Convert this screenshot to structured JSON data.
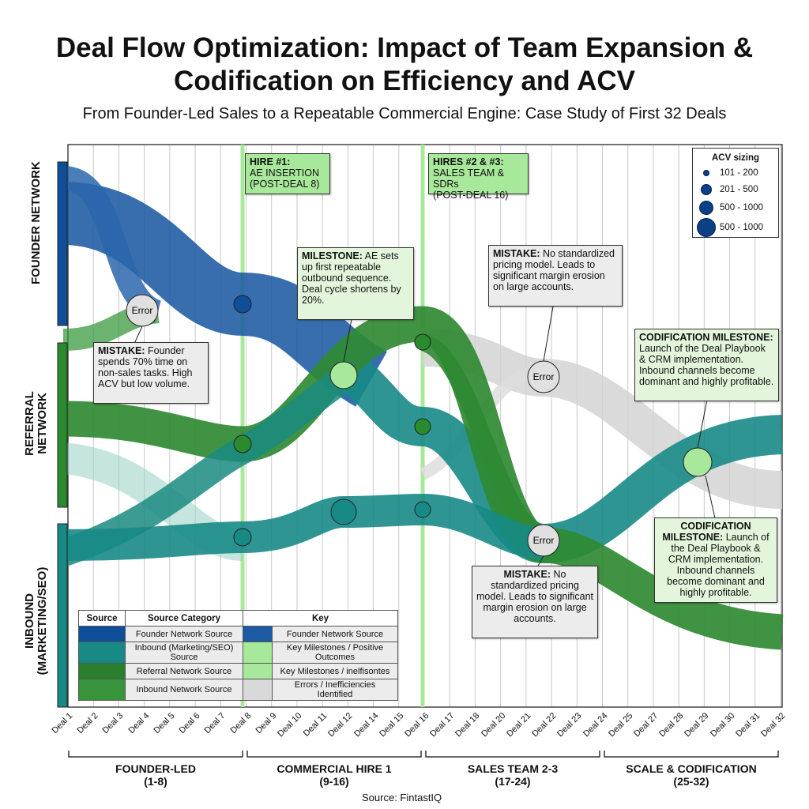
{
  "title": "Deal Flow Optimization: Impact of Team Expansion & Codification on Efficiency and ACV",
  "subtitle": "From Founder-Led Sales to a Repeatable Commercial Engine: Case Study of First 32 Deals",
  "colors": {
    "founder": "#1c5aa3",
    "inbound": "#178a86",
    "referral": "#2f8a33",
    "milestone": "#a8e89a",
    "error": "#d6d6d6"
  },
  "side_labels": {
    "founder": "FOUNDER NETWORK",
    "referral": "REFERRAL NETWORK",
    "inbound": "INBOUND (MARKETING/SEO)"
  },
  "hires": [
    {
      "title": "HIRE #1:",
      "line1": "AE INSERTION",
      "line2": "(POST-DEAL 8)"
    },
    {
      "title": "HIRES #2 & #3:",
      "line1": "SALES TEAM & SDRs",
      "line2": "(POST-DEAL 16)"
    }
  ],
  "annotations": {
    "mistake1": {
      "title": "MISTAKE:",
      "text": "Founder spends 70% time on non-sales tasks. High ACV but low volume."
    },
    "milestone1": {
      "title": "MILESTONE:",
      "text": "AE sets up first repeatable outbound sequence. Deal cycle shortens by 20%."
    },
    "mistake2": {
      "title": "MISTAKE:",
      "text": "No standardized pricing model. Leads to significant margin erosion on large accounts."
    },
    "mistake3": {
      "title": "MISTAKE:",
      "text": "No standardized pricing model. Leads to significant margin erosion on large accounts."
    },
    "codification1": {
      "title": "CODIFICATION MILESTONE:",
      "text": "Launch of the Deal Playbook & CRM implementation. Inbound channels become dominant and highly profitable."
    },
    "codification2": {
      "title": "CODIFICATION MILESTONE:",
      "text": "Launch of the Deal Playbook & CRM implementation. Inbound channels become dominant and highly profitable."
    }
  },
  "error_node_label": "Error",
  "acv_legend": {
    "title": "ACV sizing",
    "items": [
      "101 - 200",
      "201 - 500",
      "500 - 1000",
      "500 - 1000"
    ]
  },
  "key_table": {
    "headers": [
      "Source",
      "Source Category",
      "Key"
    ],
    "rows": [
      {
        "source_color": "#0f4f9a",
        "category": "Founder Network Source",
        "key_color": "#1c5aa3",
        "key": "Founder Network Source"
      },
      {
        "source_color": "#178a86",
        "category": "Inbound (Marketing/SEO) Source",
        "key_color": "#a8e89a",
        "key": "Key Milestones / Positive Outcomes"
      },
      {
        "source_color": "#2a7f2e",
        "category": "Referral Network Source",
        "key_color": "#a8e89a",
        "key": "Key Milestones / inelfisontes"
      },
      {
        "source_color": "#37943a",
        "category": "Inbound Network Source",
        "key_color": "#d9d9d9",
        "key": "Errors / Inefficiencies Identified"
      }
    ]
  },
  "deals": [
    "Deal 1",
    "Deal 2",
    "Deal 3",
    "Deal 4",
    "Deal 5",
    "Deal 6",
    "Deal 7",
    "Deal 8",
    "Deal 9",
    "Deal 10",
    "Deal 11",
    "Deal 12",
    "Deal 14",
    "Deal 15",
    "Deal 16",
    "Deal 17",
    "Deal 18",
    "Deal 20",
    "Deal 21",
    "Deal 22",
    "Deal 23",
    "Deal 24",
    "Deal 25",
    "Deal 27",
    "Deal 28",
    "Deal 29",
    "Deal 30",
    "Deal 31",
    "Deal 32"
  ],
  "phases": [
    {
      "name": "FOUNDER-LED",
      "range": "(1-8)"
    },
    {
      "name": "COMMERCIAL HIRE 1",
      "range": "(9-16)"
    },
    {
      "name": "SALES TEAM 2-3",
      "range": "(17-24)"
    },
    {
      "name": "SCALE & CODIFICATION",
      "range": "(25-32)"
    }
  ],
  "source": "Source: FintastIQ"
}
